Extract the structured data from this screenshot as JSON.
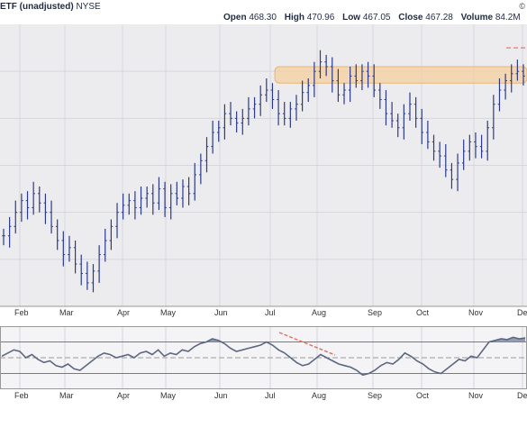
{
  "header": {
    "title": "ETF (unadjusted)",
    "exchange": "NYSE",
    "corner": "©",
    "stats": [
      {
        "key": "Open",
        "value": "468.30"
      },
      {
        "key": "High",
        "value": "470.96"
      },
      {
        "key": "Low",
        "value": "467.05"
      },
      {
        "key": "Close",
        "value": "467.28"
      },
      {
        "key": "Volume",
        "value": "84.2M"
      },
      {
        "key": "Chg",
        "value": ""
      }
    ]
  },
  "colors": {
    "price_bar": "#2b3a8c",
    "panel_bg": "#ececef",
    "grid": "#d6d6dc",
    "resistance_band": "#f5cf9e",
    "trendline": "#e07060",
    "indicator_line": "#5c6784",
    "indicator_fill": "#8a93ab",
    "axis_text": "#333333"
  },
  "chart_data": [
    {
      "type": "ohlc",
      "x_axis_labels": [
        "Feb",
        "Mar",
        "Apr",
        "May",
        "Jun",
        "Jul",
        "Aug",
        "Sep",
        "Oct",
        "Nov",
        "Dec"
      ],
      "close_series": [
        400,
        404,
        410,
        415,
        412,
        418,
        414,
        410,
        404,
        398,
        392,
        395,
        388,
        384,
        380,
        385,
        392,
        398,
        404,
        410,
        413,
        415,
        412,
        416,
        418,
        414,
        420,
        412,
        418,
        416,
        421,
        418,
        426,
        432,
        438,
        444,
        446,
        452,
        450,
        448,
        450,
        454,
        456,
        460,
        462,
        458,
        452,
        450,
        454,
        456,
        461,
        464,
        470,
        474,
        472,
        466,
        460,
        462,
        468,
        466,
        470,
        468,
        462,
        458,
        452,
        449,
        446,
        452,
        456,
        450,
        444,
        440,
        436,
        434,
        428,
        424,
        431,
        436,
        440,
        438,
        436,
        446,
        456,
        462,
        466,
        469,
        470,
        468
      ],
      "resistance_band": {
        "low": 465,
        "high": 472,
        "start_index": 46
      }
    },
    {
      "type": "line",
      "name": "",
      "x_axis_labels": [
        "Feb",
        "Mar",
        "Apr",
        "May",
        "Jun",
        "Jul",
        "Aug",
        "Sep",
        "Oct",
        "Nov",
        "Dec"
      ],
      "reference_lines": [
        70,
        50,
        30
      ],
      "values": [
        52,
        56,
        60,
        58,
        50,
        54,
        48,
        44,
        46,
        40,
        38,
        42,
        36,
        34,
        40,
        46,
        52,
        56,
        54,
        50,
        52,
        54,
        50,
        56,
        58,
        54,
        60,
        52,
        56,
        54,
        60,
        58,
        64,
        68,
        70,
        74,
        72,
        68,
        62,
        58,
        60,
        62,
        64,
        66,
        70,
        66,
        60,
        56,
        50,
        44,
        40,
        42,
        48,
        54,
        50,
        46,
        42,
        40,
        38,
        34,
        28,
        30,
        34,
        40,
        44,
        42,
        48,
        56,
        52,
        46,
        42,
        36,
        32,
        30,
        36,
        42,
        48,
        46,
        52,
        50,
        60,
        70,
        72,
        74,
        73,
        76,
        74,
        75
      ]
    }
  ]
}
